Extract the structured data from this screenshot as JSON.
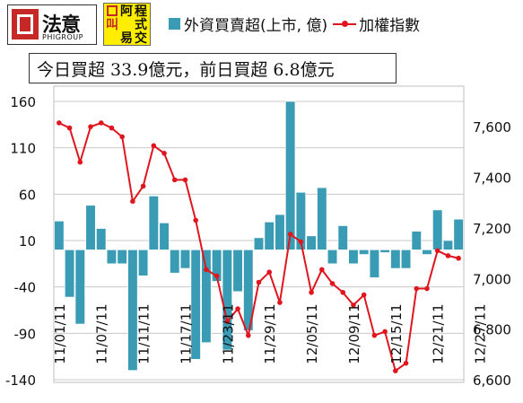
{
  "header": {
    "logo1_text": "法意",
    "logo1_sub": "PHIGROUP",
    "logo2_chars": [
      "阿",
      "叫",
      "程",
      "式",
      "易",
      "交"
    ]
  },
  "banner": "今日買超 33.9億元，前日買超 6.8億元",
  "chart_data": {
    "type": "bar+line",
    "legend": [
      "外資買賣超(上市, 億)",
      "加權指數"
    ],
    "left_axis": {
      "min": -140,
      "max": 160,
      "ticks": [
        160,
        110,
        60,
        10,
        -40,
        -90,
        -140
      ]
    },
    "right_axis": {
      "min": 6600,
      "max": 7700,
      "ticks": [
        7600,
        7400,
        7200,
        7000,
        6800,
        6600
      ]
    },
    "x_labels": [
      "11/01/11",
      "11/07/11",
      "11/11/11",
      "11/17/11",
      "11/23/11",
      "11/29/11",
      "12/05/11",
      "12/09/11",
      "12/15/11",
      "12/21/11",
      "12/27/11"
    ],
    "x_label_positions": [
      0,
      4,
      8,
      12,
      16,
      20,
      24,
      28,
      32,
      36,
      40
    ],
    "series": [
      {
        "name": "外資買賣超(上市, 億)",
        "kind": "bar",
        "color": "#3a9bb4",
        "values": [
          31,
          -51,
          -80,
          48,
          23,
          -15,
          -15,
          -130,
          -28,
          58,
          29,
          -25,
          -20,
          -118,
          -100,
          -34,
          -108,
          -45,
          -87,
          13,
          30,
          38,
          160,
          62,
          15,
          67,
          -15,
          26,
          -15,
          -5,
          -30,
          -3,
          -20,
          -20,
          20,
          -5,
          43,
          10,
          33
        ]
      },
      {
        "name": "加權指數",
        "kind": "line",
        "color": "#e0161e",
        "values": [
          7615,
          7595,
          7460,
          7600,
          7615,
          7595,
          7560,
          7305,
          7365,
          7525,
          7495,
          7390,
          7390,
          7230,
          7035,
          7010,
          6830,
          6880,
          6775,
          6985,
          7025,
          6905,
          7175,
          7145,
          6945,
          7035,
          6980,
          6945,
          6895,
          6935,
          6775,
          6790,
          6635,
          6665,
          6960,
          6960,
          7110,
          7090,
          7080
        ]
      }
    ]
  }
}
